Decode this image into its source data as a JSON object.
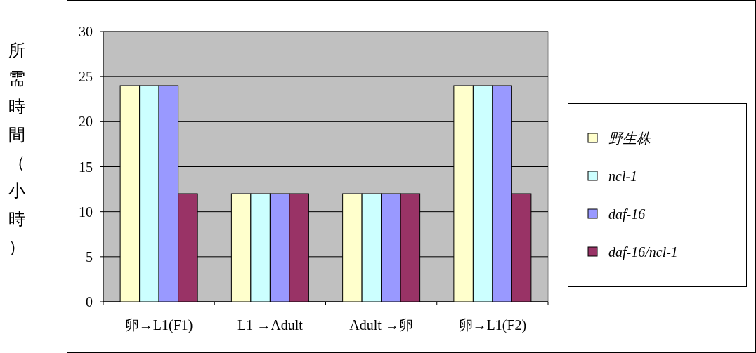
{
  "chart_data": {
    "type": "bar",
    "ylabel": "所需時間（小時）",
    "categories": [
      "卵→L1(F1)",
      "L1 →Adult",
      "Adult →卵",
      "卵→L1(F2)"
    ],
    "series": [
      {
        "name": "野生株",
        "color": "#ffffcc",
        "values": [
          24,
          12,
          12,
          24
        ]
      },
      {
        "name": "ncl-1",
        "color": "#ccffff",
        "values": [
          24,
          12,
          12,
          24
        ]
      },
      {
        "name": "daf-16",
        "color": "#9999ff",
        "values": [
          24,
          12,
          12,
          24
        ]
      },
      {
        "name": "daf-16/ncl-1",
        "color": "#993366",
        "values": [
          12,
          12,
          12,
          12
        ]
      }
    ],
    "ylim": [
      0,
      30
    ],
    "yticks": [
      0,
      5,
      10,
      15,
      20,
      25,
      30
    ],
    "grid": "y",
    "legend": "right"
  }
}
